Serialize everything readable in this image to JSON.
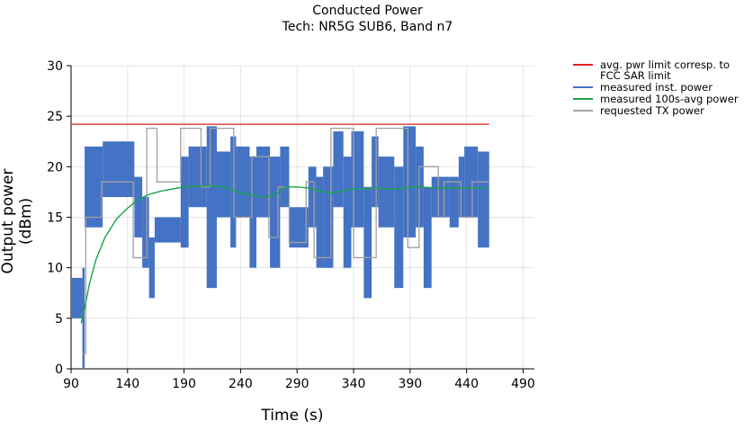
{
  "chart_data": {
    "type": "line",
    "title": "Conducted Power",
    "subtitle": "Tech: NR5G SUB6, Band n7",
    "xlabel": "Time (s)",
    "ylabel": "Output power (dBm)",
    "xlim": [
      90,
      500
    ],
    "ylim": [
      0,
      30
    ],
    "xticks": [
      90,
      140,
      190,
      240,
      290,
      340,
      390,
      440,
      490
    ],
    "yticks": [
      0,
      5,
      10,
      15,
      20,
      25,
      30
    ],
    "grid": true,
    "legend_position": "right",
    "series": [
      {
        "name": "avg. pwr limit corresp. to FCC SAR limit",
        "color": "#e02020",
        "x": [
          90,
          460
        ],
        "y": [
          24.2,
          24.2
        ]
      },
      {
        "name": "measured inst. power",
        "color": "#4472c4",
        "style": "band",
        "segments": [
          {
            "x0": 90,
            "x1": 100,
            "lo": 5,
            "hi": 9
          },
          {
            "x0": 100,
            "x1": 102,
            "lo": 0,
            "hi": 10
          },
          {
            "x0": 102,
            "x1": 118,
            "lo": 14,
            "hi": 22
          },
          {
            "x0": 118,
            "x1": 133,
            "lo": 17,
            "hi": 22.5
          },
          {
            "x0": 133,
            "x1": 146,
            "lo": 17,
            "hi": 22.5
          },
          {
            "x0": 146,
            "x1": 153,
            "lo": 13,
            "hi": 19
          },
          {
            "x0": 153,
            "x1": 159,
            "lo": 10,
            "hi": 17
          },
          {
            "x0": 159,
            "x1": 164,
            "lo": 7,
            "hi": 13
          },
          {
            "x0": 164,
            "x1": 187,
            "lo": 12.5,
            "hi": 15
          },
          {
            "x0": 187,
            "x1": 194,
            "lo": 12,
            "hi": 21
          },
          {
            "x0": 194,
            "x1": 210,
            "lo": 16,
            "hi": 22
          },
          {
            "x0": 210,
            "x1": 219,
            "lo": 8,
            "hi": 24
          },
          {
            "x0": 219,
            "x1": 231,
            "lo": 15,
            "hi": 21.5
          },
          {
            "x0": 231,
            "x1": 236,
            "lo": 12,
            "hi": 23
          },
          {
            "x0": 236,
            "x1": 248,
            "lo": 15,
            "hi": 22
          },
          {
            "x0": 248,
            "x1": 254,
            "lo": 10,
            "hi": 21
          },
          {
            "x0": 254,
            "x1": 266,
            "lo": 15,
            "hi": 22
          },
          {
            "x0": 266,
            "x1": 275,
            "lo": 10,
            "hi": 21
          },
          {
            "x0": 275,
            "x1": 283,
            "lo": 16,
            "hi": 22
          },
          {
            "x0": 283,
            "x1": 300,
            "lo": 12,
            "hi": 16
          },
          {
            "x0": 300,
            "x1": 307,
            "lo": 14,
            "hi": 20
          },
          {
            "x0": 307,
            "x1": 313,
            "lo": 10,
            "hi": 19
          },
          {
            "x0": 313,
            "x1": 322,
            "lo": 10,
            "hi": 20
          },
          {
            "x0": 322,
            "x1": 331,
            "lo": 16,
            "hi": 23.5
          },
          {
            "x0": 331,
            "x1": 338,
            "lo": 10,
            "hi": 21
          },
          {
            "x0": 338,
            "x1": 349,
            "lo": 14,
            "hi": 23.5
          },
          {
            "x0": 349,
            "x1": 356,
            "lo": 7,
            "hi": 18
          },
          {
            "x0": 356,
            "x1": 362,
            "lo": 16,
            "hi": 23
          },
          {
            "x0": 362,
            "x1": 376,
            "lo": 14,
            "hi": 21
          },
          {
            "x0": 376,
            "x1": 384,
            "lo": 8,
            "hi": 20
          },
          {
            "x0": 384,
            "x1": 395,
            "lo": 13,
            "hi": 24
          },
          {
            "x0": 395,
            "x1": 402,
            "lo": 14,
            "hi": 22
          },
          {
            "x0": 402,
            "x1": 409,
            "lo": 8,
            "hi": 18
          },
          {
            "x0": 409,
            "x1": 425,
            "lo": 15,
            "hi": 19
          },
          {
            "x0": 425,
            "x1": 433,
            "lo": 14,
            "hi": 19
          },
          {
            "x0": 433,
            "x1": 438,
            "lo": 15,
            "hi": 21
          },
          {
            "x0": 438,
            "x1": 450,
            "lo": 15,
            "hi": 22
          },
          {
            "x0": 450,
            "x1": 460,
            "lo": 12,
            "hi": 21.5
          }
        ]
      },
      {
        "name": "measured 100s-avg power",
        "color": "#1aa34a",
        "x": [
          99,
          102,
          106,
          112,
          120,
          130,
          140,
          150,
          160,
          170,
          180,
          190,
          200,
          210,
          220,
          230,
          240,
          250,
          260,
          270,
          280,
          290,
          300,
          310,
          320,
          330,
          340,
          350,
          360,
          370,
          380,
          390,
          400,
          410,
          420,
          430,
          440,
          450,
          460
        ],
        "y": [
          4.5,
          6.0,
          8.3,
          10.8,
          13.0,
          14.8,
          15.9,
          16.8,
          17.3,
          17.6,
          17.8,
          18.0,
          18.1,
          18.1,
          18.1,
          17.8,
          17.4,
          17.2,
          17.0,
          17.2,
          18.0,
          18.0,
          17.9,
          17.6,
          17.4,
          17.6,
          17.8,
          17.8,
          17.9,
          17.8,
          17.8,
          18.0,
          18.0,
          17.9,
          17.9,
          17.9,
          17.9,
          17.9,
          17.9
        ]
      },
      {
        "name": "requested TX power",
        "color": "#a0a0a0",
        "x": [
          100,
          103,
          103,
          117,
          117,
          145,
          145,
          157,
          157,
          166,
          166,
          187,
          187,
          205,
          205,
          213,
          213,
          234,
          234,
          250,
          250,
          265,
          265,
          273,
          273,
          283,
          283,
          298,
          298,
          305,
          305,
          320,
          320,
          340,
          340,
          360,
          360,
          388,
          388,
          398,
          398,
          415,
          415,
          420,
          420,
          435,
          435,
          445,
          445,
          460
        ],
        "y": [
          1.5,
          1.5,
          15,
          15,
          18.5,
          18.5,
          11,
          11,
          23.8,
          23.8,
          18.5,
          18.5,
          23.8,
          23.8,
          18,
          18,
          23.8,
          23.8,
          15,
          15,
          21,
          21,
          13,
          13,
          18,
          18,
          12.5,
          12.5,
          18.5,
          18.5,
          11,
          11,
          23.8,
          23.8,
          11,
          11,
          23.8,
          23.8,
          12,
          12,
          20,
          20,
          15,
          15,
          18.5,
          18.5,
          15,
          15,
          18.5,
          18.5
        ]
      }
    ]
  }
}
